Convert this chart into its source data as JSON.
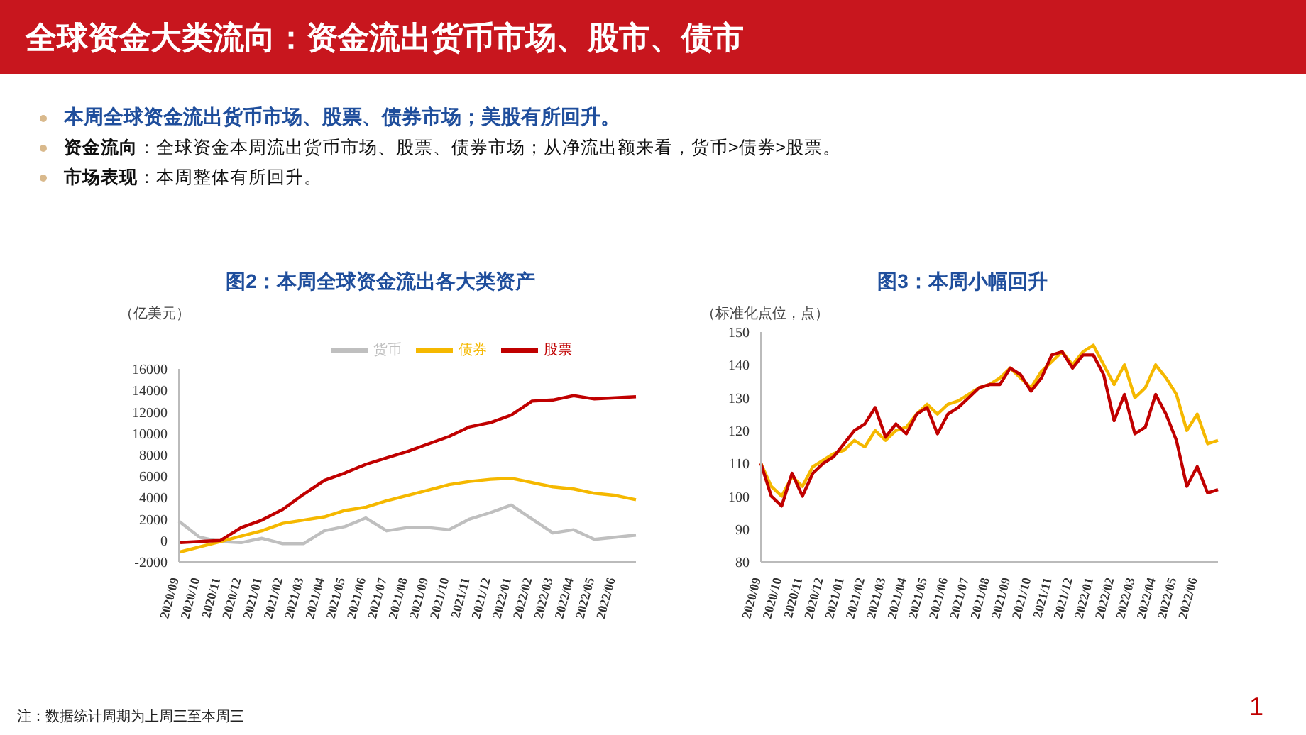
{
  "chart_data": [
    {
      "type": "line",
      "title": "图2：本周全球资金流出各大类资产",
      "ylabel": "（亿美元）",
      "annotations": [
        "全球资金大类流向：资金流出货币市场、股市、债市",
        "本周全球资金流出货币市场、股票、债券市场；美股有所回升。",
        "资金流向：全球资金本周流出货币市场、股票、债券市场；从净流出额来看，货币>债券>股票。",
        "市场表现：本周整体有所回升。",
        "注：数据统计周期为上周三至本周三",
        "1"
      ],
      "categories": [
        "2020/09",
        "2020/10",
        "2020/11",
        "2020/12",
        "2021/01",
        "2021/02",
        "2021/03",
        "2021/04",
        "2021/05",
        "2021/06",
        "2021/07",
        "2021/08",
        "2021/09",
        "2021/10",
        "2021/11",
        "2021/12",
        "2022/01",
        "2022/02",
        "2022/03",
        "2022/04",
        "2022/05",
        "2022/06",
        null
      ],
      "series": [
        {
          "name": "货币",
          "color": "#bfbfbf",
          "values": [
            1800,
            300,
            -100,
            -200,
            200,
            -300,
            -300,
            900,
            1300,
            2100,
            900,
            1200,
            1200,
            1000,
            2000,
            2600,
            3300,
            2000,
            700,
            1000,
            100,
            300,
            500
          ]
        },
        {
          "name": "债券",
          "color": "#f5b800",
          "values": [
            -1100,
            -600,
            -100,
            400,
            900,
            1600,
            1900,
            2200,
            2800,
            3100,
            3700,
            4200,
            4700,
            5200,
            5500,
            5700,
            5800,
            5400,
            5000,
            4800,
            4400,
            4200,
            3800
          ]
        },
        {
          "name": "股票",
          "color": "#c00000",
          "values": [
            -200,
            -100,
            0,
            1200,
            1900,
            2900,
            4300,
            5600,
            6300,
            7100,
            7700,
            8300,
            9000,
            9700,
            10600,
            11000,
            11700,
            13000,
            13100,
            13500,
            13200,
            13300,
            13400
          ]
        }
      ],
      "ylim": [
        -2000,
        16000
      ],
      "yticks": [
        -2000,
        0,
        2000,
        4000,
        6000,
        8000,
        10000,
        12000,
        14000,
        16000
      ],
      "legend": "top",
      "marker": "none",
      "line_style": "solid"
    },
    {
      "type": "line",
      "title": "图3：本周小幅回升",
      "ylabel": "（标准化点位，点）",
      "categories": [
        "2020/09",
        null,
        "2020/10",
        null,
        "2020/11",
        null,
        "2020/12",
        null,
        "2021/01",
        null,
        "2021/02",
        null,
        "2021/03",
        null,
        "2021/04",
        null,
        "2021/05",
        null,
        "2021/06",
        null,
        "2021/07",
        null,
        "2021/08",
        null,
        "2021/09",
        null,
        "2021/10",
        null,
        "2021/11",
        null,
        "2021/12",
        null,
        "2022/01",
        null,
        "2022/02",
        null,
        "2022/03",
        null,
        "2022/04",
        null,
        "2022/05",
        null,
        "2022/06",
        null,
        null
      ],
      "series": [
        {
          "color": "#f5b800",
          "values": [
            110,
            103,
            100,
            106,
            103,
            109,
            111,
            113,
            114,
            117,
            115,
            120,
            117,
            120,
            121,
            125,
            128,
            125,
            128,
            129,
            131,
            133,
            134,
            136,
            139,
            136,
            133,
            138,
            141,
            144,
            140,
            144,
            146,
            140,
            134,
            140,
            130,
            133,
            140,
            136,
            131,
            120,
            125,
            116,
            117
          ]
        },
        {
          "color": "#c00000",
          "values": [
            110,
            100,
            97,
            107,
            100,
            107,
            110,
            112,
            116,
            120,
            122,
            127,
            118,
            122,
            119,
            125,
            127,
            119,
            125,
            127,
            130,
            133,
            134,
            134,
            139,
            137,
            132,
            136,
            143,
            144,
            139,
            143,
            143,
            137,
            123,
            131,
            119,
            121,
            131,
            125,
            117,
            103,
            109,
            101,
            102
          ]
        }
      ],
      "ylim": [
        80,
        150
      ],
      "yticks": [
        80,
        90,
        100,
        110,
        120,
        130,
        140,
        150
      ],
      "marker": "none",
      "line_style": "solid"
    }
  ]
}
